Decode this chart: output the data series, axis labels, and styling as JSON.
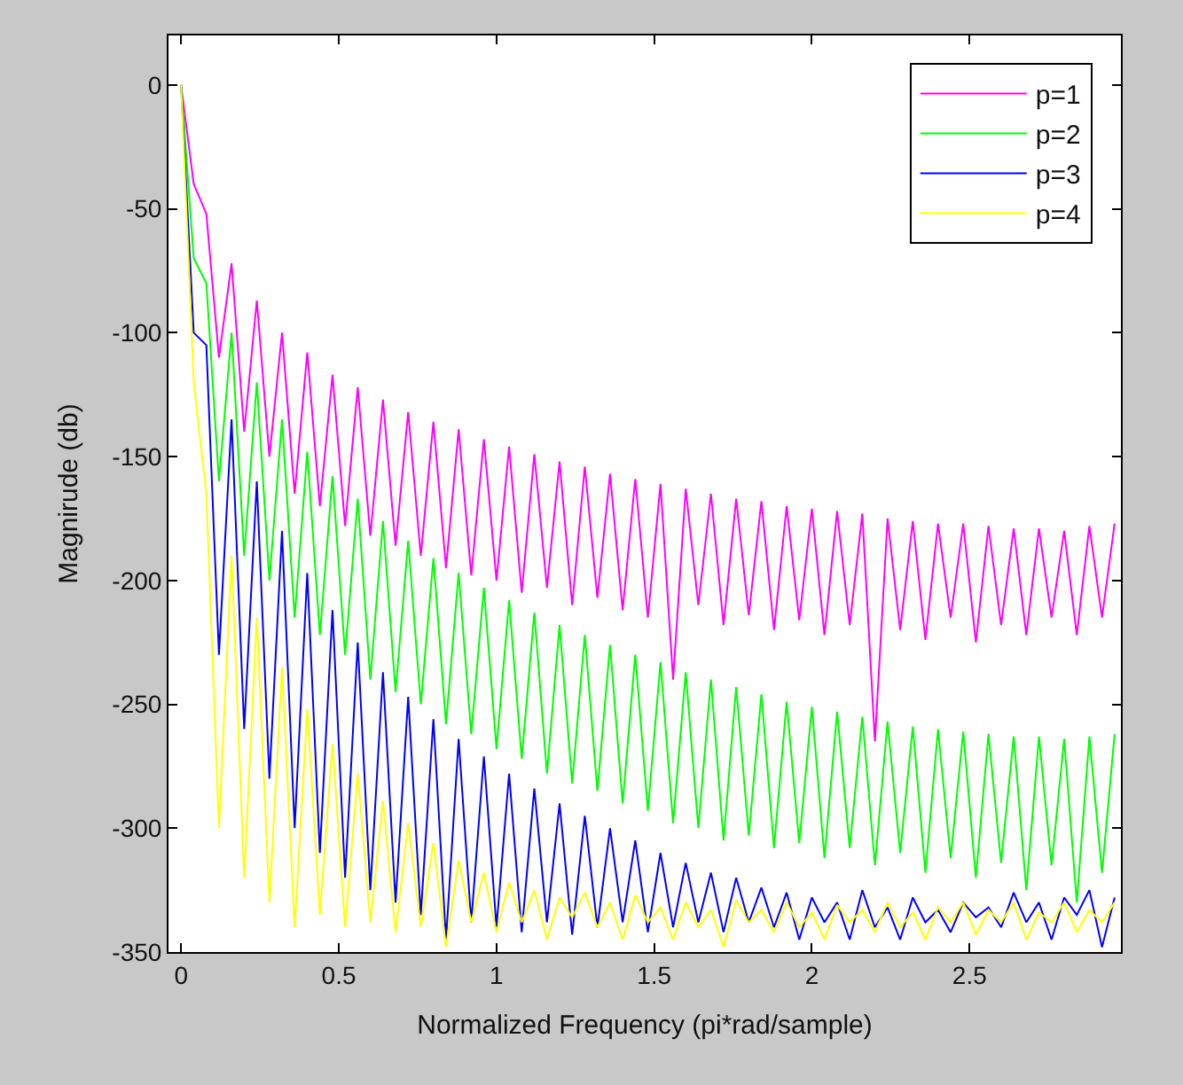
{
  "chart_data": {
    "type": "line",
    "xlabel": "Normalized Frequency (pi*rad/sample)",
    "ylabel": "Magnirude (db)",
    "x": [
      0,
      0.04,
      0.08,
      0.12,
      0.16,
      0.2,
      0.24,
      0.28,
      0.32,
      0.36,
      0.4,
      0.44,
      0.48,
      0.52,
      0.56,
      0.6,
      0.64,
      0.68,
      0.72,
      0.76,
      0.8,
      0.84,
      0.88,
      0.92,
      0.96,
      1.0,
      1.04,
      1.08,
      1.12,
      1.16,
      1.2,
      1.24,
      1.28,
      1.32,
      1.36,
      1.4,
      1.44,
      1.48,
      1.52,
      1.56,
      1.6,
      1.64,
      1.68,
      1.72,
      1.76,
      1.8,
      1.84,
      1.88,
      1.92,
      1.96,
      2.0,
      2.04,
      2.08,
      2.12,
      2.16,
      2.2,
      2.24,
      2.28,
      2.32,
      2.36,
      2.4,
      2.44,
      2.48,
      2.52,
      2.56,
      2.6,
      2.64,
      2.68,
      2.72,
      2.76,
      2.8,
      2.84,
      2.88,
      2.92,
      2.96
    ],
    "series": [
      {
        "name": "p=1",
        "color": "#ff00ff",
        "values": [
          0,
          -40,
          -52,
          -110,
          -72,
          -140,
          -87,
          -150,
          -100,
          -165,
          -108,
          -170,
          -117,
          -178,
          -122,
          -182,
          -127,
          -186,
          -132,
          -190,
          -136,
          -195,
          -139,
          -198,
          -143,
          -200,
          -146,
          -205,
          -149,
          -203,
          -152,
          -210,
          -154,
          -207,
          -157,
          -212,
          -159,
          -215,
          -161,
          -240,
          -163,
          -210,
          -165,
          -218,
          -167,
          -214,
          -168,
          -220,
          -170,
          -216,
          -171,
          -222,
          -172,
          -218,
          -173,
          -265,
          -175,
          -220,
          -176,
          -224,
          -177,
          -215,
          -177,
          -225,
          -178,
          -218,
          -179,
          -222,
          -179,
          -215,
          -180,
          -222,
          -178,
          -215,
          -177
        ]
      },
      {
        "name": "p=2",
        "color": "#00ff00",
        "values": [
          0,
          -70,
          -80,
          -160,
          -100,
          -190,
          -120,
          -200,
          -135,
          -215,
          -148,
          -222,
          -158,
          -230,
          -167,
          -240,
          -176,
          -245,
          -184,
          -250,
          -191,
          -258,
          -197,
          -262,
          -203,
          -268,
          -208,
          -272,
          -213,
          -278,
          -218,
          -282,
          -222,
          -285,
          -226,
          -290,
          -230,
          -293,
          -233,
          -298,
          -237,
          -300,
          -240,
          -305,
          -243,
          -303,
          -246,
          -308,
          -249,
          -306,
          -251,
          -312,
          -253,
          -308,
          -255,
          -315,
          -257,
          -310,
          -259,
          -318,
          -260,
          -312,
          -261,
          -320,
          -262,
          -314,
          -263,
          -325,
          -263,
          -315,
          -264,
          -330,
          -263,
          -318,
          -262
        ]
      },
      {
        "name": "p=3",
        "color": "#0000ff",
        "values": [
          0,
          -100,
          -105,
          -230,
          -135,
          -260,
          -160,
          -280,
          -180,
          -300,
          -197,
          -310,
          -212,
          -320,
          -225,
          -325,
          -237,
          -330,
          -247,
          -335,
          -256,
          -345,
          -264,
          -338,
          -271,
          -340,
          -278,
          -342,
          -284,
          -338,
          -290,
          -343,
          -295,
          -340,
          -300,
          -338,
          -305,
          -342,
          -310,
          -340,
          -314,
          -338,
          -318,
          -342,
          -320,
          -338,
          -324,
          -340,
          -326,
          -345,
          -328,
          -338,
          -330,
          -345,
          -325,
          -340,
          -332,
          -345,
          -328,
          -338,
          -333,
          -342,
          -330,
          -336,
          -332,
          -340,
          -326,
          -338,
          -330,
          -345,
          -328,
          -335,
          -325,
          -348,
          -328
        ]
      },
      {
        "name": "p=4",
        "color": "#ffff00",
        "values": [
          0,
          -120,
          -165,
          -300,
          -190,
          -320,
          -215,
          -330,
          -235,
          -340,
          -252,
          -335,
          -266,
          -340,
          -278,
          -338,
          -289,
          -342,
          -298,
          -340,
          -306,
          -348,
          -313,
          -338,
          -318,
          -342,
          -322,
          -338,
          -325,
          -345,
          -328,
          -336,
          -326,
          -340,
          -330,
          -345,
          -327,
          -338,
          -332,
          -345,
          -330,
          -340,
          -333,
          -348,
          -329,
          -338,
          -333,
          -342,
          -330,
          -340,
          -334,
          -345,
          -331,
          -338,
          -333,
          -342,
          -330,
          -340,
          -334,
          -345,
          -332,
          -338,
          -330,
          -343,
          -333,
          -338,
          -330,
          -345,
          -334,
          -338,
          -330,
          -342,
          -333,
          -338,
          -330
        ]
      }
    ],
    "xlim": [
      -0.04,
      2.98
    ],
    "xticks": [
      0,
      0.5,
      1,
      1.5,
      2,
      2.5
    ],
    "ylim": [
      -350,
      20
    ],
    "yticks": [
      0,
      -50,
      -100,
      -150,
      -200,
      -250,
      -300,
      -350
    ],
    "legend": "top right"
  }
}
